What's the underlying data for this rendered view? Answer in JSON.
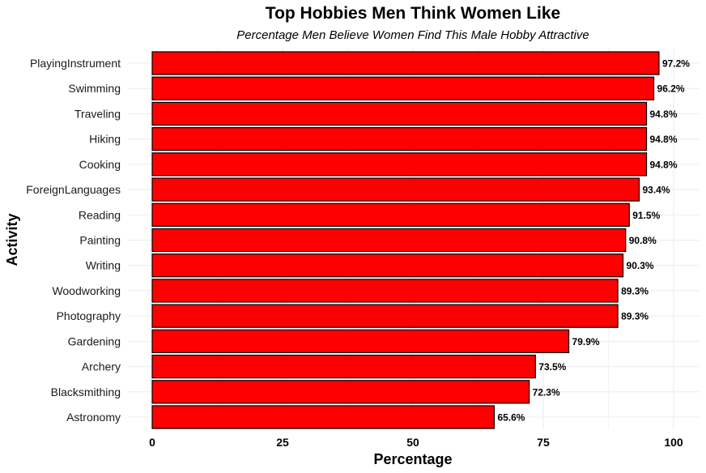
{
  "chart_data": {
    "type": "bar",
    "orientation": "horizontal",
    "title": "Top Hobbies Men Think Women Like",
    "subtitle": "Percentage Men Believe Women Find This Male Hobby Attractive",
    "xlabel": "Percentage",
    "ylabel": "Activity",
    "xlim": [
      0,
      100
    ],
    "x_ticks": [
      "0",
      "25",
      "50",
      "75",
      "100"
    ],
    "grid": true,
    "bar_color": "#ff0000",
    "bar_outline": "#000000",
    "categories": [
      "PlayingInstrument",
      "Swimming",
      "Traveling",
      "Hiking",
      "Cooking",
      "ForeignLanguages",
      "Reading",
      "Painting",
      "Writing",
      "Woodworking",
      "Photography",
      "Gardening",
      "Archery",
      "Blacksmithing",
      "Astronomy"
    ],
    "values": [
      97.2,
      96.2,
      94.8,
      94.8,
      94.8,
      93.4,
      91.5,
      90.8,
      90.3,
      89.3,
      89.3,
      79.9,
      73.5,
      72.3,
      65.6
    ],
    "value_labels": [
      "97.2%",
      "96.2%",
      "94.8%",
      "94.8%",
      "94.8%",
      "93.4%",
      "91.5%",
      "90.8%",
      "90.3%",
      "89.3%",
      "89.3%",
      "79.9%",
      "73.5%",
      "72.3%",
      "65.6%"
    ]
  }
}
